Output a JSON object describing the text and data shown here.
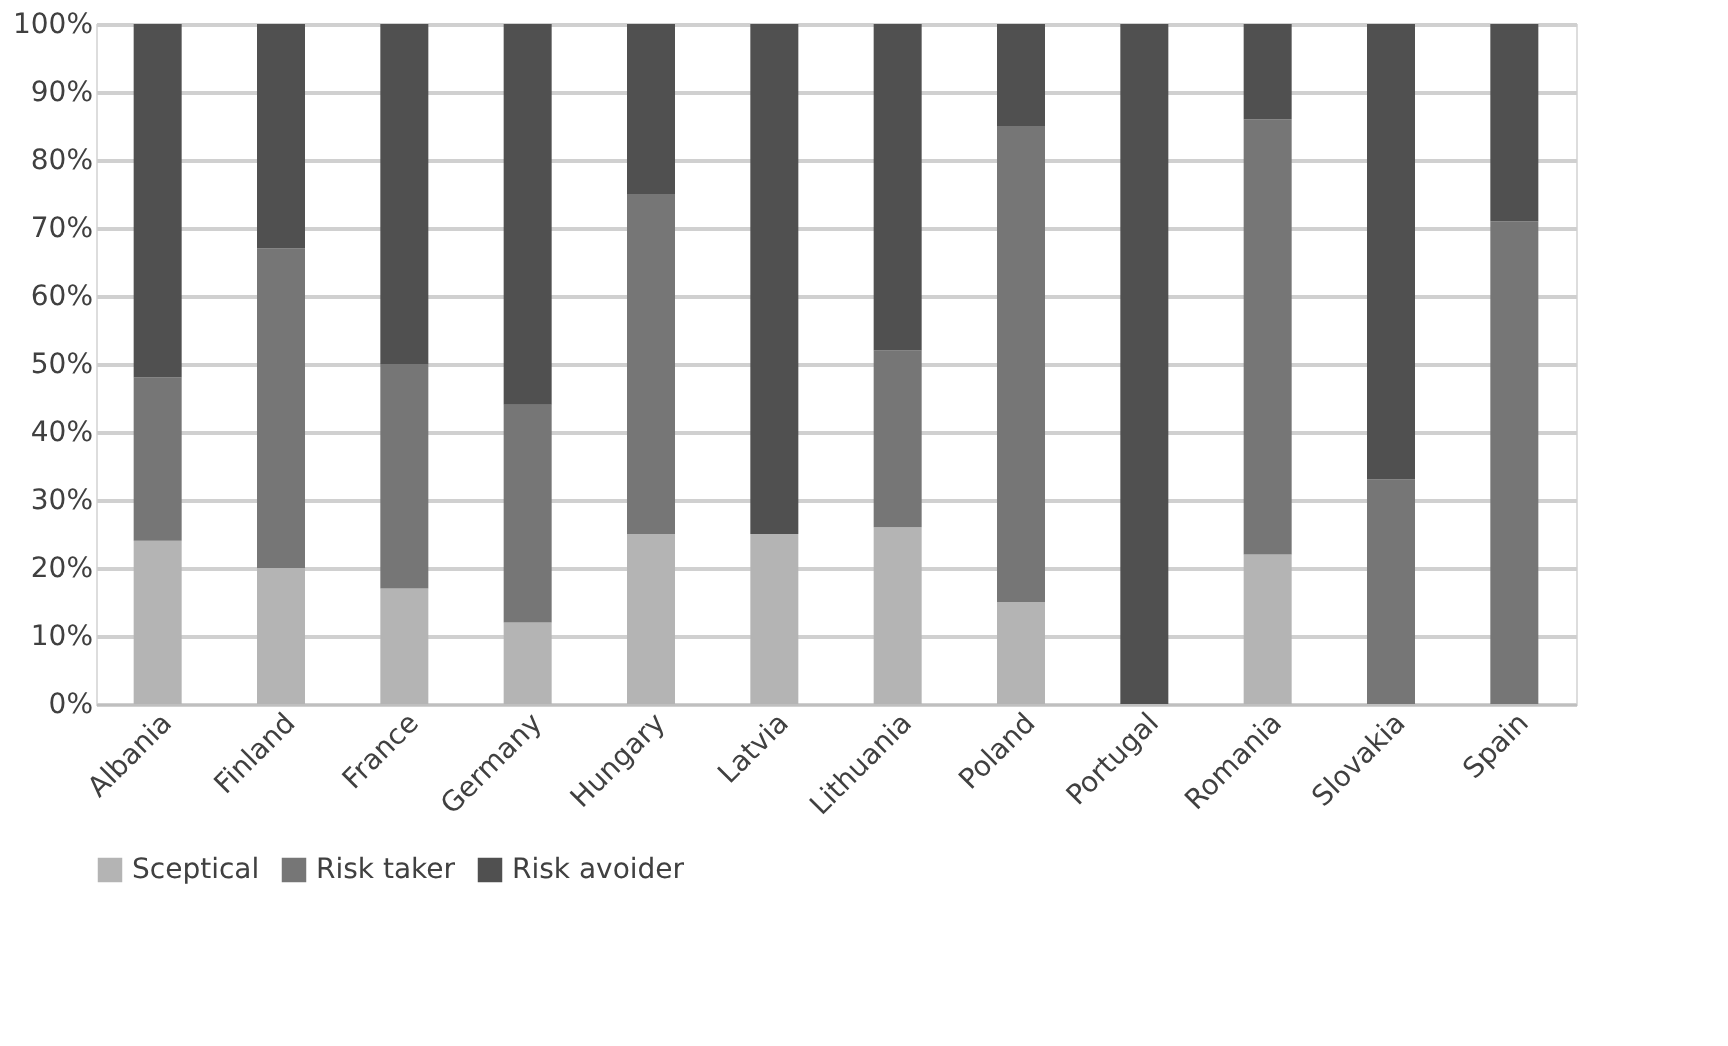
{
  "chart_data": {
    "type": "bar",
    "stacked": true,
    "categories": [
      "Albania",
      "Finland",
      "France",
      "Germany",
      "Hungary",
      "Latvia",
      "Lithuania",
      "Poland",
      "Portugal",
      "Romania",
      "Slovakia",
      "Spain"
    ],
    "series": [
      {
        "name": "Sceptical",
        "color": "#b4b4b4",
        "values": [
          24,
          20,
          17,
          12,
          25,
          25,
          26,
          15,
          0,
          22,
          0,
          0
        ]
      },
      {
        "name": "Risk taker",
        "color": "#767676",
        "values": [
          24,
          47,
          33,
          32,
          50,
          0,
          26,
          70,
          0,
          64,
          33,
          71
        ]
      },
      {
        "name": "Risk avoider",
        "color": "#505050",
        "values": [
          52,
          33,
          50,
          56,
          25,
          75,
          48,
          15,
          100,
          14,
          67,
          29
        ]
      }
    ],
    "ylim": [
      0,
      100
    ],
    "yticks": [
      {
        "value": 0,
        "label": "0%"
      },
      {
        "value": 10,
        "label": "10%"
      },
      {
        "value": 20,
        "label": "20%"
      },
      {
        "value": 30,
        "label": "30%"
      },
      {
        "value": 40,
        "label": "40%"
      },
      {
        "value": 50,
        "label": "50%"
      },
      {
        "value": 60,
        "label": "60%"
      },
      {
        "value": 70,
        "label": "70%"
      },
      {
        "value": 80,
        "label": "80%"
      },
      {
        "value": 90,
        "label": "90%"
      },
      {
        "value": 100,
        "label": "100%"
      }
    ],
    "grid": "y",
    "legend": "bottom"
  }
}
